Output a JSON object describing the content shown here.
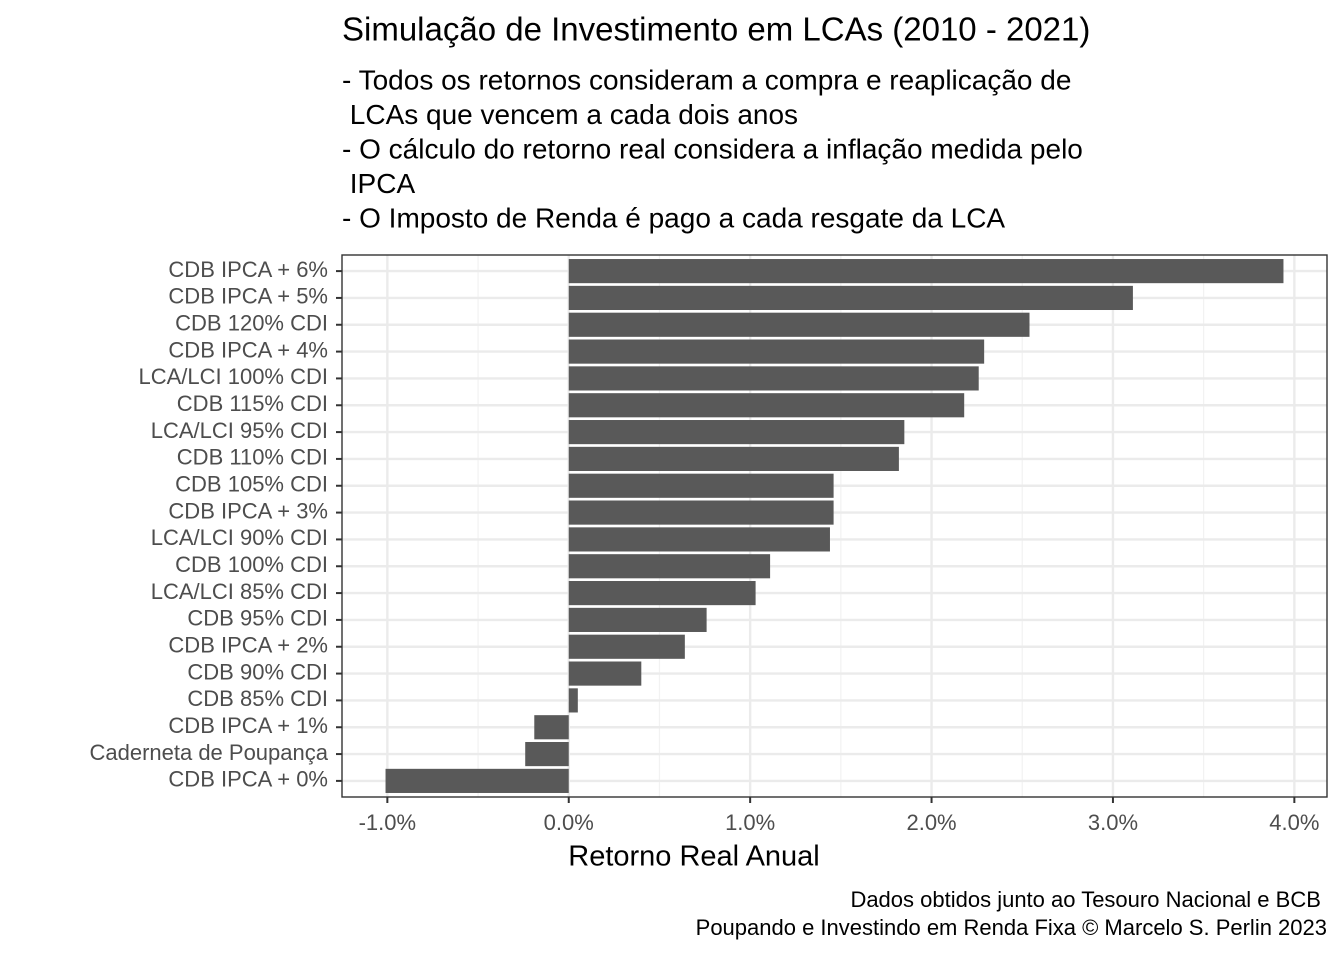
{
  "chart_data": {
    "type": "barh",
    "title": "Simulação de Investimento em LCAs (2010 - 2021)",
    "subtitle": [
      "- Todos os retornos consideram a compra e reaplicação de",
      " LCAs que vencem a cada dois anos",
      "- O cálculo do retorno real considera a inflação medida pelo",
      " IPCA",
      "- O Imposto de Renda é pago a cada resgate da LCA"
    ],
    "x_label": "Retorno Real Anual",
    "caption": [
      "Dados obtidos junto ao Tesouro Nacional e BCB ",
      "Poupando e Investindo em Renda Fixa © Marcelo S. Perlin 2023"
    ],
    "categories": [
      "CDB IPCA + 6%",
      "CDB IPCA + 5%",
      "CDB 120% CDI",
      "CDB IPCA + 4%",
      "LCA/LCI 100% CDI",
      "CDB 115% CDI",
      "LCA/LCI 95% CDI",
      "CDB 110% CDI",
      "CDB 105% CDI",
      "CDB IPCA + 3%",
      "LCA/LCI 90% CDI",
      "CDB 100% CDI",
      "LCA/LCI 85% CDI",
      "CDB 95% CDI",
      "CDB IPCA + 2%",
      "CDB 90% CDI",
      "CDB 85% CDI",
      "CDB IPCA + 1%",
      "Caderneta de Poupança",
      "CDB IPCA + 0%"
    ],
    "values": [
      3.94,
      3.11,
      2.54,
      2.29,
      2.26,
      2.18,
      1.85,
      1.82,
      1.46,
      1.46,
      1.44,
      1.11,
      1.03,
      0.76,
      0.64,
      0.4,
      0.05,
      -0.19,
      -0.24,
      -1.01
    ],
    "color": "#595959",
    "xlim": [
      -1.25,
      4.18
    ],
    "xticks": [
      {
        "value": -1,
        "label": "-1.0%"
      },
      {
        "value": 0,
        "label": "0.0%"
      },
      {
        "value": 1,
        "label": "1.0%"
      },
      {
        "value": 2,
        "label": "2.0%"
      },
      {
        "value": 3,
        "label": "3.0%"
      },
      {
        "value": 4,
        "label": "4.0%"
      }
    ],
    "grid": true
  }
}
